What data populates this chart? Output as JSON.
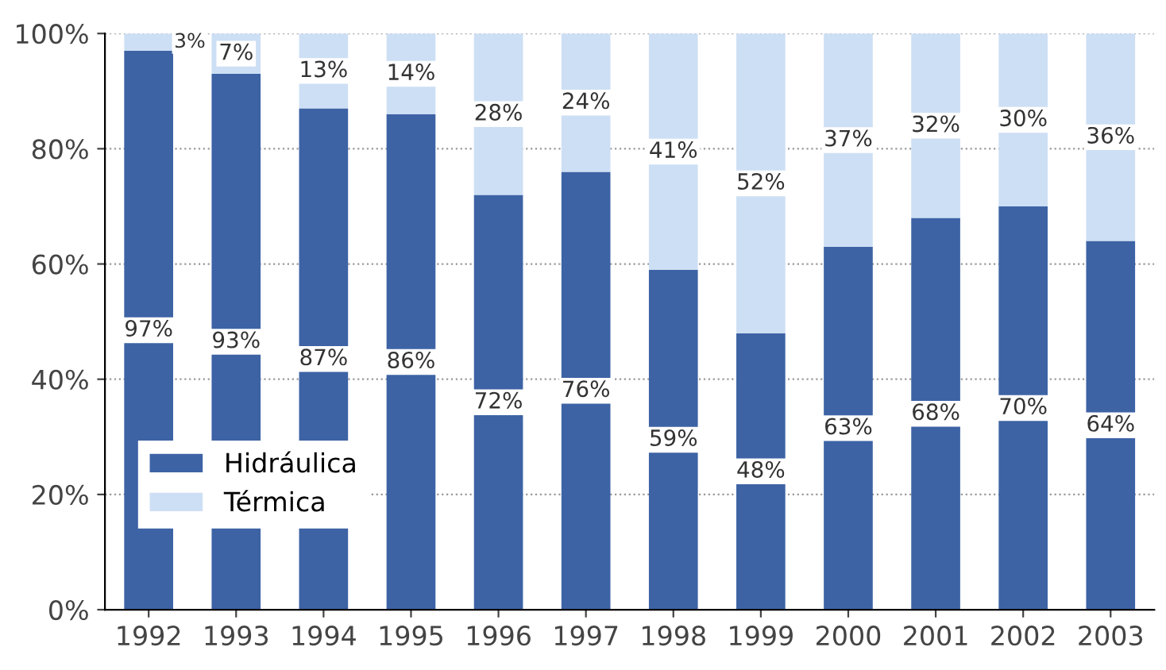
{
  "chart_data": {
    "type": "bar",
    "stacked": true,
    "categories": [
      "1992",
      "1993",
      "1994",
      "1995",
      "1996",
      "1997",
      "1998",
      "1999",
      "2000",
      "2001",
      "2002",
      "2003"
    ],
    "series": [
      {
        "name": "Hidráulica",
        "color": "#3d63a5",
        "values": [
          97,
          93,
          87,
          86,
          72,
          76,
          59,
          48,
          63,
          68,
          70,
          64
        ],
        "value_labels": [
          "97%",
          "93%",
          "87%",
          "86%",
          "72%",
          "76%",
          "59%",
          "48%",
          "63%",
          "68%",
          "70%",
          "64%"
        ]
      },
      {
        "name": "Térmica",
        "color": "#cddff4",
        "values": [
          3,
          7,
          13,
          14,
          28,
          24,
          41,
          52,
          37,
          32,
          30,
          36
        ],
        "value_labels": [
          "3%",
          "7%",
          "13%",
          "14%",
          "28%",
          "24%",
          "41%",
          "52%",
          "37%",
          "32%",
          "30%",
          "36%"
        ]
      }
    ],
    "ylim": [
      0,
      100
    ],
    "yticks": [
      {
        "value": 0,
        "label": "0%"
      },
      {
        "value": 20,
        "label": "20%"
      },
      {
        "value": 40,
        "label": "40%"
      },
      {
        "value": 60,
        "label": "60%"
      },
      {
        "value": 80,
        "label": "80%"
      },
      {
        "value": 100,
        "label": "100%"
      }
    ],
    "grid": "y",
    "legend": "bottom left"
  }
}
